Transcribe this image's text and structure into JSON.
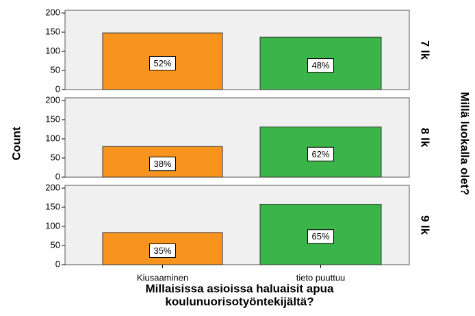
{
  "chart_data": {
    "type": "bar",
    "categories": [
      "Kiusaaminen",
      "tieto puuttuu"
    ],
    "colors": [
      "#f7941e",
      "#3bb54a"
    ],
    "x_label": [
      "Millaisissa asioissa haluaisit apua",
      "koulunuorisotyöntekijältä?"
    ],
    "y_label": "Count",
    "facet_label": "Millä luokalla olet?",
    "ylim": [
      0,
      200
    ],
    "yticks": [
      0,
      50,
      100,
      150,
      200
    ],
    "facets": [
      {
        "name": "7 lk",
        "values": [
          148,
          137
        ],
        "labels": [
          "52%",
          "48%"
        ]
      },
      {
        "name": "8 lk",
        "values": [
          80,
          131
        ],
        "labels": [
          "38%",
          "62%"
        ]
      },
      {
        "name": "9 lk",
        "values": [
          84,
          158
        ],
        "labels": [
          "35%",
          "65%"
        ]
      }
    ]
  }
}
